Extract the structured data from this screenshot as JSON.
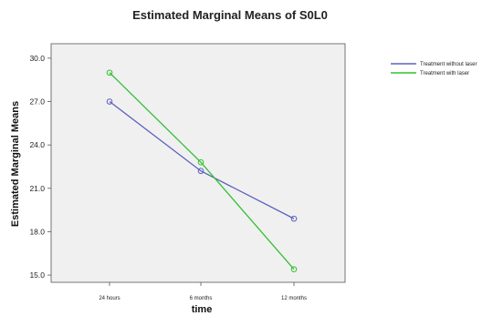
{
  "chart_data": {
    "type": "line",
    "title": "Estimated Marginal Means of S0L0",
    "xlabel": "time",
    "ylabel": "Estimated Marginal Means",
    "categories": [
      "24 hours",
      "6 months",
      "12 months"
    ],
    "y_ticks": [
      "15.0",
      "18.0",
      "21.0",
      "24.0",
      "27.0",
      "30.0"
    ],
    "ylim": [
      14.5,
      31.0
    ],
    "grid": false,
    "legend_position": "right",
    "plot_background": "#f0f0f0",
    "series": [
      {
        "name": "Treatment without laser",
        "color": "#5b62bd",
        "values": [
          27.0,
          22.2,
          18.9
        ]
      },
      {
        "name": "Treatment with laser",
        "color": "#32c032",
        "values": [
          29.0,
          22.8,
          15.4
        ]
      }
    ]
  }
}
